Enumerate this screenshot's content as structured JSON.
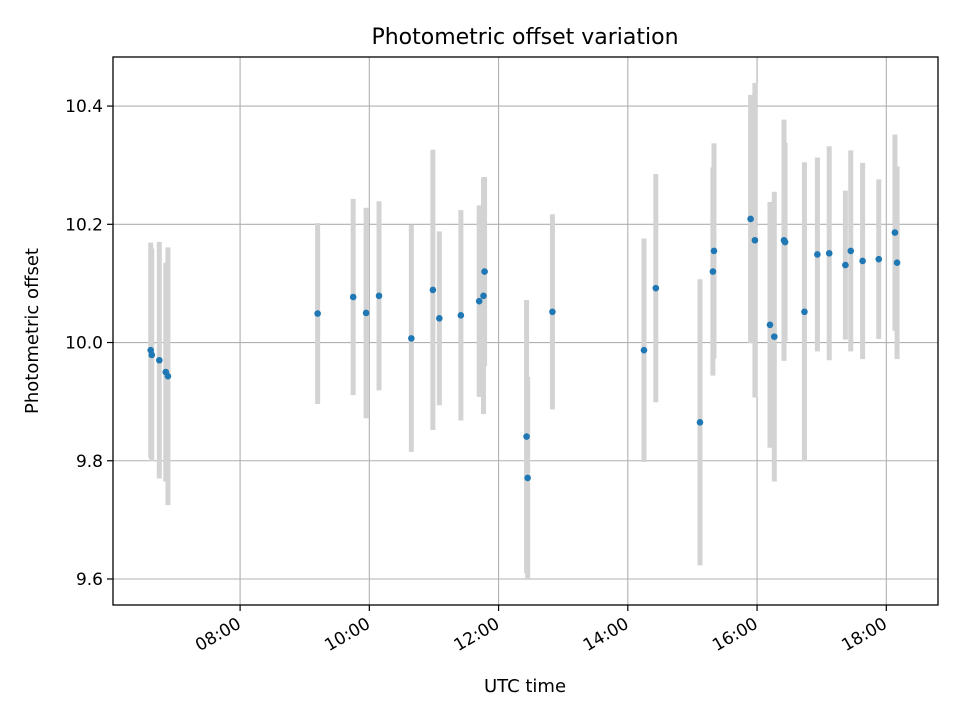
{
  "chart_data": {
    "type": "scatter",
    "title": "Photometric offset variation",
    "xlabel": "UTC time",
    "ylabel": "Photometric offset",
    "x_unit": "UTC time (HH:MM)",
    "xlim": [
      "06:02",
      "18:48"
    ],
    "ylim": [
      9.556,
      10.483
    ],
    "x_ticks": [
      "08:00",
      "10:00",
      "12:00",
      "14:00",
      "16:00",
      "18:00"
    ],
    "y_ticks": [
      9.6,
      9.8,
      10.0,
      10.2,
      10.4
    ],
    "y_tick_labels": [
      "9.6",
      "9.8",
      "10.0",
      "10.2",
      "10.4"
    ],
    "grid": true,
    "colors": {
      "points": "#1f77b4",
      "errorbars": "#d3d3d3",
      "grid": "#b0b0b0"
    },
    "series": [
      {
        "points": [
          {
            "x": "06:37",
            "y": 9.987,
            "err": 0.182
          },
          {
            "x": "06:38",
            "y": 9.979,
            "err": 0.18
          },
          {
            "x": "06:45",
            "y": 9.97,
            "err": 0.2
          },
          {
            "x": "06:51",
            "y": 9.95,
            "err": 0.185
          },
          {
            "x": "06:53",
            "y": 9.943,
            "err": 0.218
          },
          {
            "x": "09:12",
            "y": 10.049,
            "err": 0.153
          },
          {
            "x": "09:45",
            "y": 10.077,
            "err": 0.166
          },
          {
            "x": "09:57",
            "y": 10.05,
            "err": 0.178
          },
          {
            "x": "10:09",
            "y": 10.079,
            "err": 0.16
          },
          {
            "x": "10:39",
            "y": 10.007,
            "err": 0.192
          },
          {
            "x": "10:59",
            "y": 10.089,
            "err": 0.237
          },
          {
            "x": "11:05",
            "y": 10.041,
            "err": 0.147
          },
          {
            "x": "11:25",
            "y": 10.046,
            "err": 0.178
          },
          {
            "x": "11:42",
            "y": 10.07,
            "err": 0.162
          },
          {
            "x": "11:46",
            "y": 10.079,
            "err": 0.2
          },
          {
            "x": "11:47",
            "y": 10.12,
            "err": 0.16
          },
          {
            "x": "12:26",
            "y": 9.841,
            "err": 0.231
          },
          {
            "x": "12:27",
            "y": 9.771,
            "err": 0.171
          },
          {
            "x": "12:50",
            "y": 10.052,
            "err": 0.165
          },
          {
            "x": "14:15",
            "y": 9.987,
            "err": 0.189
          },
          {
            "x": "14:26",
            "y": 10.092,
            "err": 0.193
          },
          {
            "x": "15:07",
            "y": 9.865,
            "err": 0.242
          },
          {
            "x": "15:19",
            "y": 10.12,
            "err": 0.176
          },
          {
            "x": "15:20",
            "y": 10.155,
            "err": 0.182
          },
          {
            "x": "15:54",
            "y": 10.209,
            "err": 0.21
          },
          {
            "x": "15:58",
            "y": 10.173,
            "err": 0.266
          },
          {
            "x": "16:12",
            "y": 10.03,
            "err": 0.208
          },
          {
            "x": "16:16",
            "y": 10.01,
            "err": 0.245
          },
          {
            "x": "16:25",
            "y": 10.173,
            "err": 0.204
          },
          {
            "x": "16:26",
            "y": 10.17,
            "err": 0.168
          },
          {
            "x": "16:44",
            "y": 10.052,
            "err": 0.253
          },
          {
            "x": "16:56",
            "y": 10.149,
            "err": 0.164
          },
          {
            "x": "17:07",
            "y": 10.151,
            "err": 0.181
          },
          {
            "x": "17:22",
            "y": 10.131,
            "err": 0.126
          },
          {
            "x": "17:27",
            "y": 10.155,
            "err": 0.17
          },
          {
            "x": "17:38",
            "y": 10.138,
            "err": 0.166
          },
          {
            "x": "17:53",
            "y": 10.141,
            "err": 0.135
          },
          {
            "x": "18:08",
            "y": 10.186,
            "err": 0.166
          },
          {
            "x": "18:10",
            "y": 10.135,
            "err": 0.163
          }
        ]
      }
    ]
  }
}
